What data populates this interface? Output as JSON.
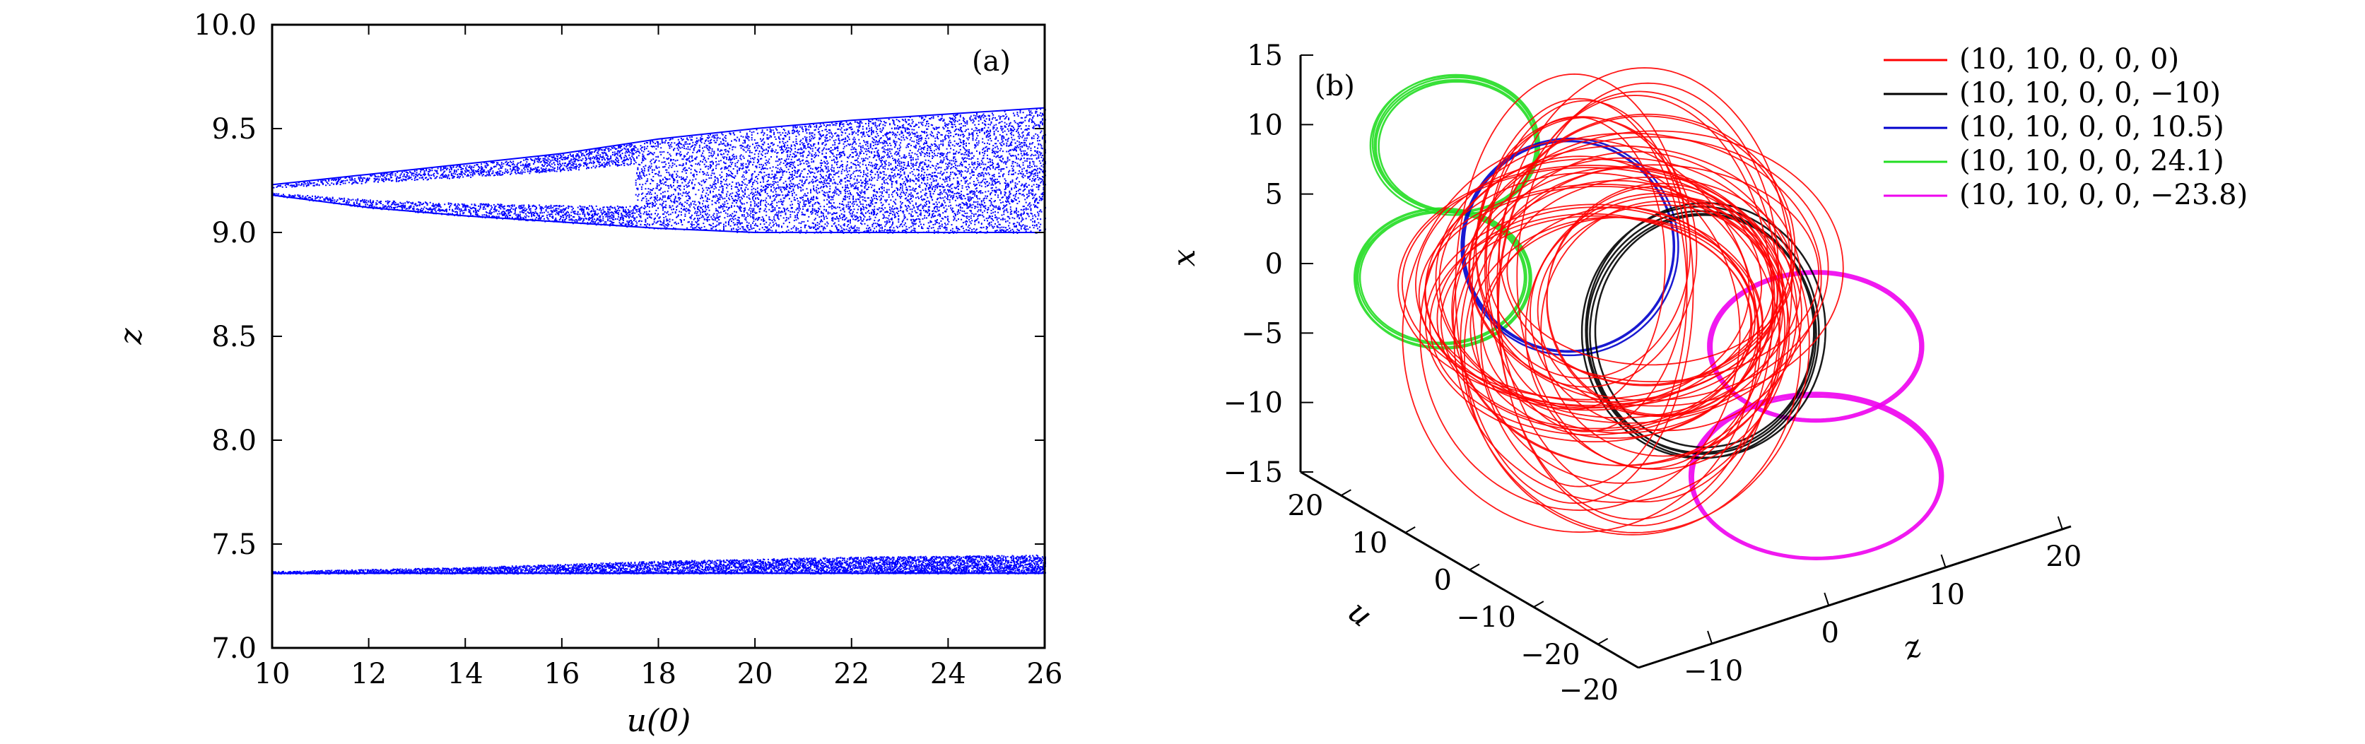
{
  "chart_data": [
    {
      "type": "scatter",
      "panel_label": "(a)",
      "xlabel": "u(0)",
      "ylabel": "z",
      "xlim": [
        10,
        26
      ],
      "ylim": [
        7.0,
        10.0
      ],
      "x_ticks": [
        "10",
        "12",
        "14",
        "16",
        "18",
        "20",
        "22",
        "24",
        "26"
      ],
      "y_ticks": [
        "7.0",
        "7.5",
        "8.0",
        "8.5",
        "9.0",
        "9.5",
        "10.0"
      ],
      "grid": false,
      "point_color": "#0000ff",
      "series": [
        {
          "values_description_ranges": [
            {
              "x": 10.0,
              "z_min": 9.18,
              "z_max": 9.23
            },
            {
              "x": 12.0,
              "z_min": 9.12,
              "z_max": 9.28
            },
            {
              "x": 14.0,
              "z_min": 9.08,
              "z_max": 9.33
            },
            {
              "x": 16.0,
              "z_min": 9.05,
              "z_max": 9.38
            },
            {
              "x": 18.0,
              "z_min": 9.02,
              "z_max": 9.45
            },
            {
              "x": 20.0,
              "z_min": 9.0,
              "z_max": 9.5
            },
            {
              "x": 22.0,
              "z_min": 9.0,
              "z_max": 9.54
            },
            {
              "x": 24.0,
              "z_min": 9.0,
              "z_max": 9.57
            },
            {
              "x": 26.0,
              "z_min": 9.0,
              "z_max": 9.6
            }
          ]
        },
        {
          "values_description_ranges": [
            {
              "x": 10.0,
              "z_min": 7.36,
              "z_max": 7.37
            },
            {
              "x": 14.0,
              "z_min": 7.36,
              "z_max": 7.39
            },
            {
              "x": 18.0,
              "z_min": 7.36,
              "z_max": 7.42
            },
            {
              "x": 22.0,
              "z_min": 7.36,
              "z_max": 7.44
            },
            {
              "x": 26.0,
              "z_min": 7.36,
              "z_max": 7.45
            }
          ]
        }
      ]
    },
    {
      "type": "line",
      "panel_label": "(b)",
      "xlabel": "z",
      "ylabel": "u",
      "zlabel": "x",
      "x_ticks": [
        "−10",
        "0",
        "10",
        "20"
      ],
      "y_ticks": [
        "−20",
        "−10",
        "0",
        "10",
        "20"
      ],
      "z_ticks": [
        "15",
        "10",
        "5",
        "0",
        "−5",
        "−10",
        "−15"
      ],
      "corner_tick": "−20",
      "legend_position": "top-right",
      "series": [
        {
          "name": "(10, 10, 0, 0, 0)",
          "color": "#ff0000"
        },
        {
          "name": "(10, 10, 0, 0, −10)",
          "color": "#000000"
        },
        {
          "name": "(10, 10, 0, 0, 10.5)",
          "color": "#0000cc"
        },
        {
          "name": "(10, 10, 0, 0, 24.1)",
          "color": "#22dd22"
        },
        {
          "name": "(10, 10, 0, 0, −23.8)",
          "color": "#ee00ee"
        }
      ]
    }
  ]
}
